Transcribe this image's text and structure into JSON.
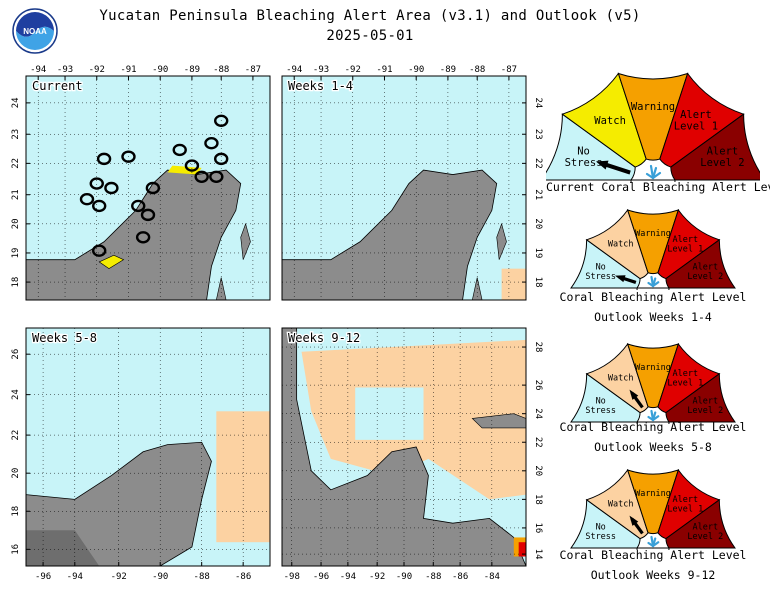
{
  "header": {
    "title": "Yucatan Peninsula Bleaching Alert Area (v3.1) and Outlook (v5)",
    "date": "2025-05-01",
    "logo_text": "NOAA"
  },
  "colors": {
    "ocean": "#c8f4f8",
    "land": "#8c8c8c",
    "land_dark": "#6e6e6e",
    "no_stress": "#c8f4f8",
    "watch_current": "#f5ec00",
    "watch_outlook": "#fcd2a2",
    "warning": "#f5a000",
    "alert1": "#e00000",
    "alert2": "#8a0000",
    "coral": "#3aa0d8"
  },
  "maps": [
    {
      "id": "current",
      "label": "Current",
      "lon_ticks": [
        "-94",
        "-93",
        "-92",
        "-91",
        "-90",
        "-89",
        "-88",
        "-87"
      ],
      "lat_ticks": [
        "18",
        "19",
        "20",
        "21",
        "22",
        "23",
        "24"
      ]
    },
    {
      "id": "weeks-1-4",
      "label": "Weeks 1-4",
      "lon_ticks": [
        "-94",
        "-93",
        "-92",
        "-91",
        "-90",
        "-89",
        "-88",
        "-87"
      ],
      "lat_ticks": [
        "18",
        "19",
        "20",
        "21",
        "22",
        "23",
        "24"
      ]
    },
    {
      "id": "weeks-5-8",
      "label": "Weeks 5-8",
      "lon_ticks": [
        "-96",
        "-94",
        "-92",
        "-90",
        "-88",
        "-86"
      ],
      "lat_ticks": [
        "16",
        "18",
        "20",
        "22",
        "24",
        "26"
      ]
    },
    {
      "id": "weeks-9-12",
      "label": "Weeks 9-12",
      "lon_ticks": [
        "-98",
        "-96",
        "-94",
        "-92",
        "-90",
        "-88",
        "-86",
        "-84"
      ],
      "lat_ticks": [
        "14",
        "16",
        "18",
        "20",
        "22",
        "24",
        "26",
        "28"
      ]
    }
  ],
  "gauges": [
    {
      "id": "current",
      "labels": {
        "no_stress": "No Stress",
        "watch": "Watch",
        "warning": "Warning",
        "alert1": "Alert Level 1",
        "alert2": "Alert Level 2"
      },
      "caption": [
        "Current Coral Bleaching Alert Level"
      ],
      "level": "No Stress"
    },
    {
      "id": "weeks-1-4",
      "labels": {
        "no_stress": "No Stress",
        "watch": "Watch",
        "warning": "Warning",
        "alert1": "Alert Level 1",
        "alert2": "Alert Level 2"
      },
      "caption": [
        "Coral Bleaching Alert Level",
        "Outlook Weeks 1-4"
      ],
      "level": "No Stress"
    },
    {
      "id": "weeks-5-8",
      "labels": {
        "no_stress": "No Stress",
        "watch": "Watch",
        "warning": "Warning",
        "alert1": "Alert Level 1",
        "alert2": "Alert Level 2"
      },
      "caption": [
        "Coral Bleaching Alert Level",
        "Outlook Weeks 5-8"
      ],
      "level": "Watch"
    },
    {
      "id": "weeks-9-12",
      "labels": {
        "no_stress": "No Stress",
        "watch": "Watch",
        "warning": "Warning",
        "alert1": "Alert Level 1",
        "alert2": "Alert Level 2"
      },
      "caption": [
        "Coral Bleaching Alert Level",
        "Outlook Weeks 9-12"
      ],
      "level": "Watch"
    }
  ]
}
